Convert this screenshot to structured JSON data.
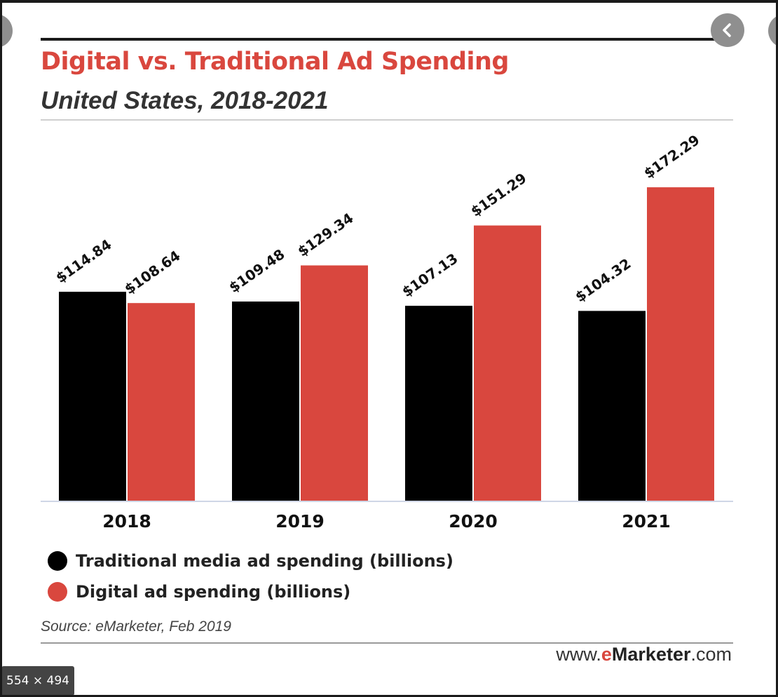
{
  "viewer": {
    "back_icon": "chevron-left-icon",
    "dimensions_badge": "554 × 494"
  },
  "title": "Digital vs. Traditional Ad Spending",
  "subtitle": "United States, 2018-2021",
  "chart_data": {
    "type": "bar",
    "categories": [
      "2018",
      "2019",
      "2020",
      "2021"
    ],
    "series": [
      {
        "name": "Traditional media ad spending (billions)",
        "values": [
          114.84,
          109.48,
          107.13,
          104.32
        ],
        "labels": [
          "$114.84",
          "$109.48",
          "$107.13",
          "$104.32"
        ],
        "color": "#000000"
      },
      {
        "name": "Digital ad spending (billions)",
        "values": [
          108.64,
          129.34,
          151.29,
          172.29
        ],
        "labels": [
          "$108.64",
          "$129.34",
          "$151.29",
          "$172.29"
        ],
        "color": "#d9473e"
      }
    ],
    "ylim": [
      0,
      200
    ],
    "grid": false,
    "legend_position": "bottom-left"
  },
  "source": "Source: eMarketer, Feb 2019",
  "brand": {
    "prefix": "www.",
    "e": "e",
    "marketer": "Marketer",
    "suffix": ".com"
  }
}
